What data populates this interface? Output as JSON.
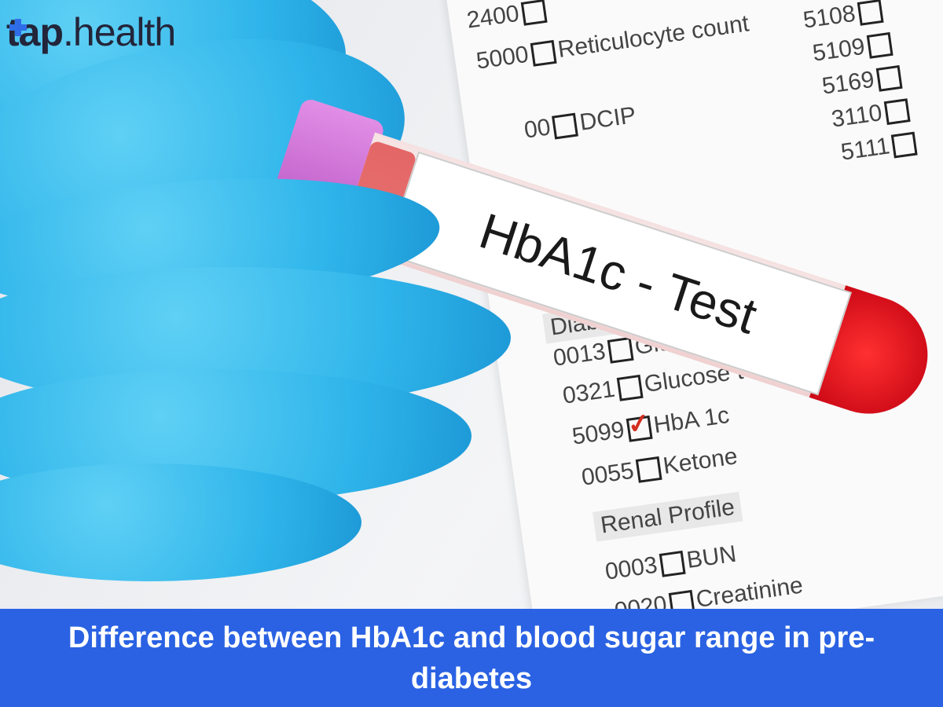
{
  "brand": {
    "logo_text_bold": "tap",
    "logo_text_regular": ".health",
    "accent": "#2f6de8"
  },
  "photo": {
    "tube_label": "HbA1c - Test",
    "form": {
      "top_left": [
        {
          "code": "2400",
          "label": ""
        },
        {
          "code": "5000",
          "label": "Reticulocyte count"
        },
        {
          "code": "00",
          "label": "DCIP"
        }
      ],
      "top_right": [
        "5108",
        "5109",
        "5169",
        "3110",
        "5111"
      ],
      "section_diabetes": "Diabetes",
      "diabetes_items": [
        {
          "code": "0013",
          "label": "Gluco",
          "checked": false
        },
        {
          "code": "0321",
          "label": "Glucose to",
          "checked": false
        },
        {
          "code": "5099",
          "label": "HbA 1c",
          "checked": true
        },
        {
          "code": "0055",
          "label": "Ketone",
          "checked": false
        }
      ],
      "section_renal": "Renal Profile",
      "renal_items": [
        {
          "code": "0003",
          "label": "BUN"
        },
        {
          "code": "0020",
          "label": "Creatinine"
        }
      ]
    }
  },
  "caption": {
    "text": "Difference between HbA1c and blood sugar range in pre-diabetes",
    "background": "#2a62e3"
  }
}
